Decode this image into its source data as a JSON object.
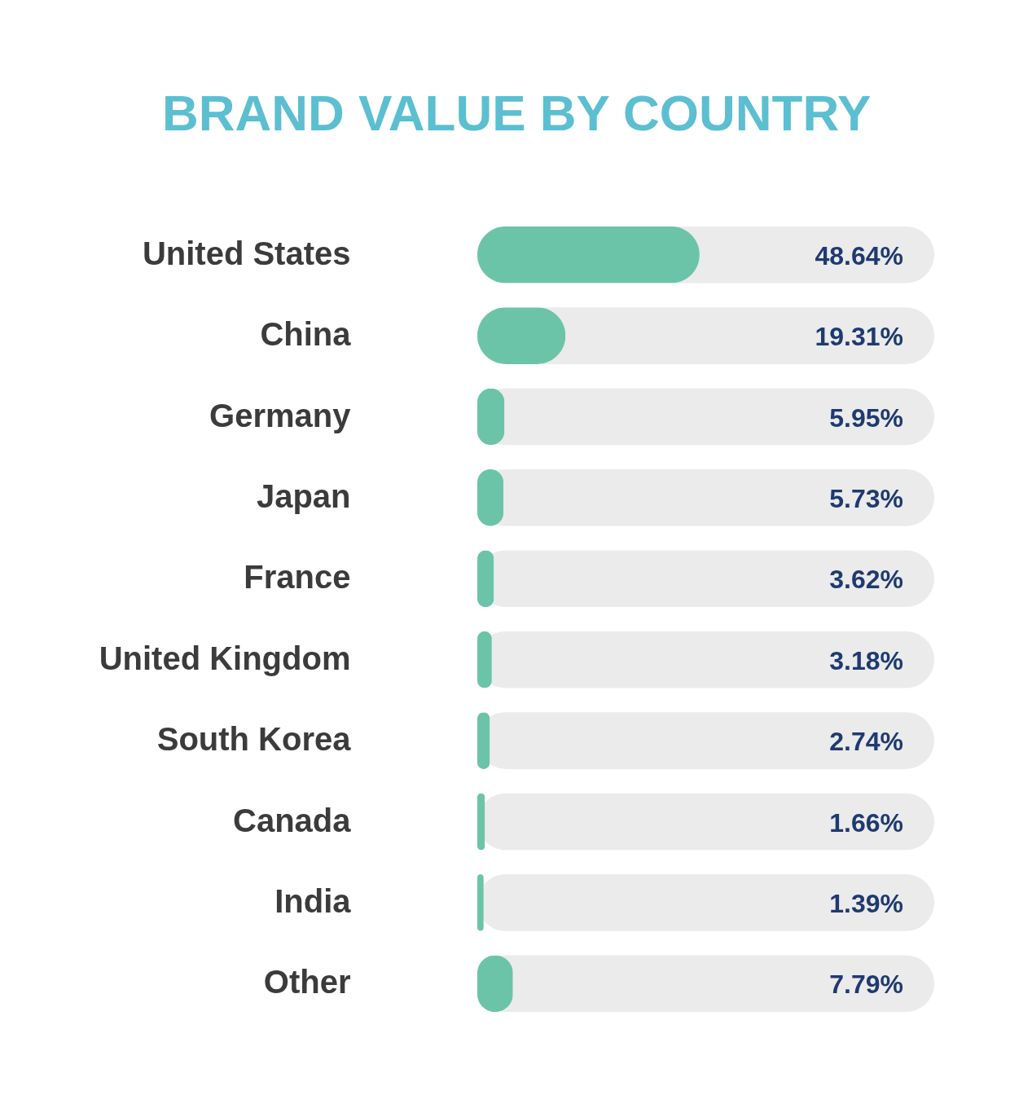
{
  "chart_data": {
    "type": "bar",
    "orientation": "horizontal",
    "title": "BRAND VALUE BY COUNTRY",
    "categories": [
      "United States",
      "China",
      "Germany",
      "Japan",
      "France",
      "United Kingdom",
      "South Korea",
      "Canada",
      "India",
      "Other"
    ],
    "values": [
      48.64,
      19.31,
      5.95,
      5.73,
      3.62,
      3.18,
      2.74,
      1.66,
      1.39,
      7.79
    ],
    "value_labels": [
      "48.64%",
      "19.31%",
      "5.95%",
      "5.73%",
      "3.62%",
      "3.18%",
      "2.74%",
      "1.66%",
      "1.39%",
      "7.79%"
    ],
    "color": "#6cc4a8",
    "xlim": [
      0,
      100
    ],
    "tick_labels": "y",
    "bands": [
      {
        "axis": "x",
        "from": 0,
        "to": 100,
        "color": "#ebebeb"
      }
    ]
  }
}
